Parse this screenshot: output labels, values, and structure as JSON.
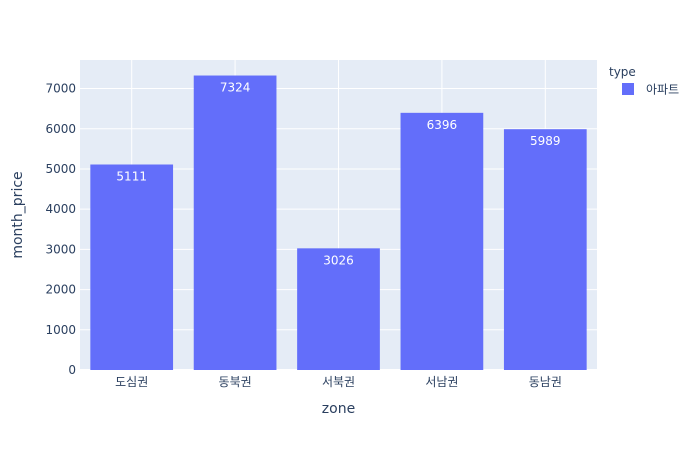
{
  "chart_data": {
    "type": "bar",
    "xlabel": "zone",
    "ylabel": "month_price",
    "categories": [
      "도심권",
      "동북권",
      "서북권",
      "서남권",
      "동남권"
    ],
    "series": [
      {
        "name": "아파트",
        "values": [
          5111,
          7324,
          3026,
          6396,
          5989
        ],
        "color": "#636efa"
      }
    ],
    "ylim": [
      0,
      7710
    ],
    "yticks": [
      0,
      1000,
      2000,
      3000,
      4000,
      5000,
      6000,
      7000
    ],
    "grid": true,
    "legend": {
      "title": "type",
      "placement": "top-right"
    },
    "colors": {
      "plot_bg": "#e5ecf6",
      "bar": "#636efa",
      "grid": "#ffffff",
      "text": "#2a3f5f"
    }
  }
}
